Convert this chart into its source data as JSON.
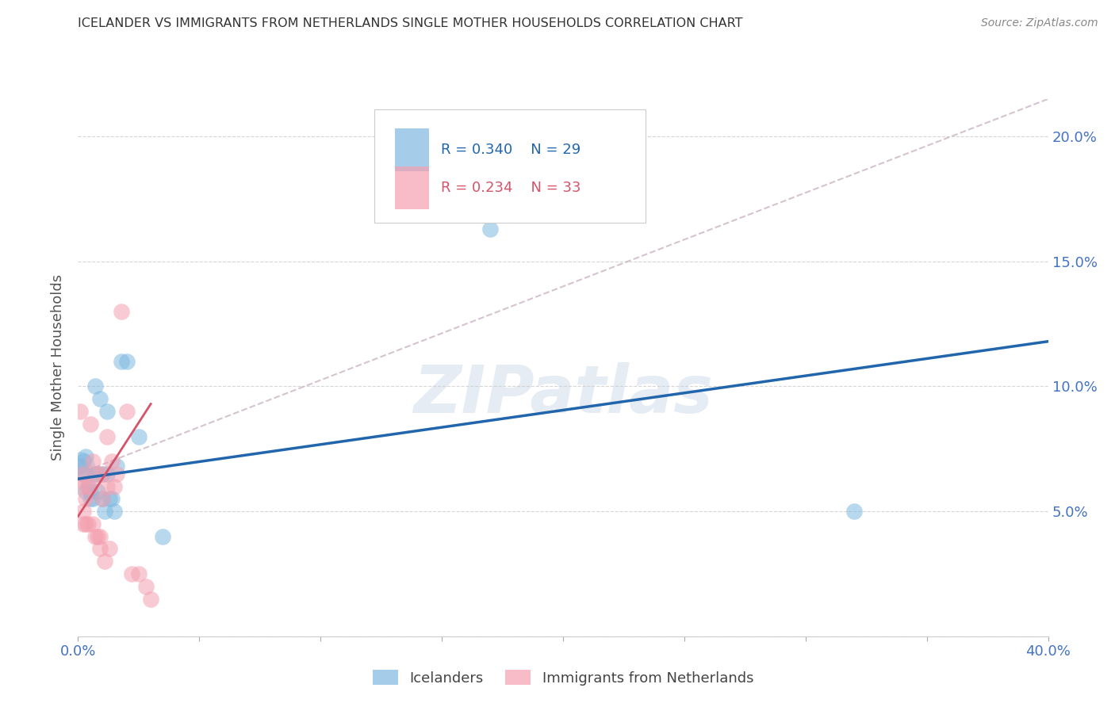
{
  "title": "ICELANDER VS IMMIGRANTS FROM NETHERLANDS SINGLE MOTHER HOUSEHOLDS CORRELATION CHART",
  "source": "Source: ZipAtlas.com",
  "ylabel_label": "Single Mother Households",
  "xlim": [
    0.0,
    0.4
  ],
  "ylim": [
    0.0,
    0.215
  ],
  "yticks": [
    0.0,
    0.05,
    0.1,
    0.15,
    0.2
  ],
  "ytick_labels": [
    "",
    "5.0%",
    "10.0%",
    "15.0%",
    "20.0%"
  ],
  "xticks": [
    0.0,
    0.05,
    0.1,
    0.15,
    0.2,
    0.25,
    0.3,
    0.35,
    0.4
  ],
  "xtick_labels": [
    "0.0%",
    "",
    "",
    "",
    "",
    "",
    "",
    "",
    "40.0%"
  ],
  "blue_color": "#7fb9e0",
  "pink_color": "#f4a0b0",
  "blue_line_color": "#2166ac",
  "pink_line_color": "#d6546a",
  "dashed_line_color": "#c8b0c0",
  "watermark_text": "ZIPatlas",
  "blue_r": "0.340",
  "blue_n": "29",
  "pink_r": "0.234",
  "pink_n": "33",
  "title_color": "#333333",
  "axis_color": "#4472c4",
  "ylabel_color": "#555555",
  "grid_color": "#cccccc",
  "blue_scatter_x": [
    0.001,
    0.002,
    0.002,
    0.003,
    0.003,
    0.004,
    0.005,
    0.005,
    0.006,
    0.007,
    0.007,
    0.008,
    0.008,
    0.009,
    0.01,
    0.01,
    0.011,
    0.012,
    0.012,
    0.013,
    0.014,
    0.015,
    0.016,
    0.018,
    0.02,
    0.025,
    0.035,
    0.17,
    0.32
  ],
  "blue_scatter_y": [
    0.068,
    0.065,
    0.07,
    0.058,
    0.072,
    0.06,
    0.058,
    0.055,
    0.055,
    0.065,
    0.1,
    0.058,
    0.065,
    0.095,
    0.065,
    0.055,
    0.05,
    0.09,
    0.065,
    0.055,
    0.055,
    0.05,
    0.068,
    0.11,
    0.11,
    0.08,
    0.04,
    0.163,
    0.05
  ],
  "blue_large_x": [
    0.001
  ],
  "blue_large_y": [
    0.068
  ],
  "pink_scatter_x": [
    0.001,
    0.001,
    0.002,
    0.002,
    0.002,
    0.003,
    0.003,
    0.004,
    0.004,
    0.005,
    0.005,
    0.006,
    0.006,
    0.007,
    0.008,
    0.008,
    0.009,
    0.009,
    0.01,
    0.01,
    0.011,
    0.012,
    0.012,
    0.013,
    0.014,
    0.015,
    0.016,
    0.018,
    0.02,
    0.022,
    0.025,
    0.028,
    0.03
  ],
  "pink_scatter_y": [
    0.06,
    0.09,
    0.05,
    0.065,
    0.045,
    0.045,
    0.055,
    0.045,
    0.06,
    0.085,
    0.06,
    0.07,
    0.045,
    0.04,
    0.04,
    0.065,
    0.035,
    0.04,
    0.055,
    0.065,
    0.03,
    0.08,
    0.06,
    0.035,
    0.07,
    0.06,
    0.065,
    0.13,
    0.09,
    0.025,
    0.025,
    0.02,
    0.015
  ],
  "pink_large_x": [
    0.001
  ],
  "pink_large_y": [
    0.065
  ],
  "blue_line_x": [
    0.0,
    0.4
  ],
  "blue_line_y": [
    0.063,
    0.118
  ],
  "pink_line_x": [
    0.0,
    0.03
  ],
  "pink_line_y": [
    0.048,
    0.093
  ],
  "dashed_line_x": [
    0.0,
    0.4
  ],
  "dashed_line_y": [
    0.065,
    0.215
  ]
}
